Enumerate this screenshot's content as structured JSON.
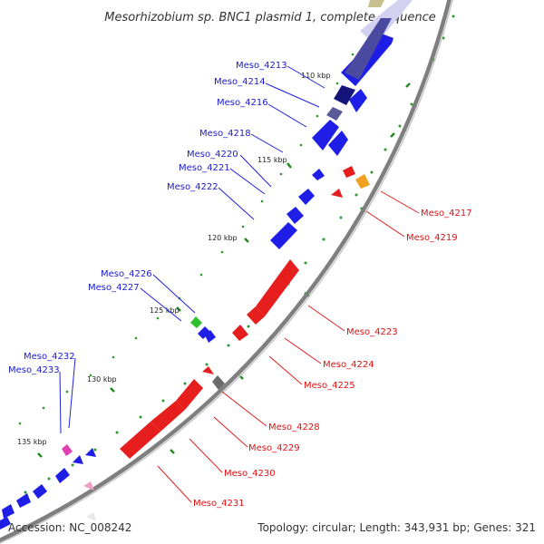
{
  "title": "Mesorhizobium sp. BNC1 plasmid 1, complete sequence",
  "footer": {
    "accession": "Accession: NC_008242",
    "summary": "Topology: circular; Length: 343,931 bp; Genes: 321"
  },
  "scale_labels": [
    "110 kbp",
    "115 kbp",
    "120 kbp",
    "125 kbp",
    "130 kbp",
    "135 kbp"
  ],
  "genes_forward": [
    "Meso_4213",
    "Meso_4214",
    "Meso_4216",
    "Meso_4218",
    "Meso_4220",
    "Meso_4221",
    "Meso_4222",
    "Meso_4226",
    "Meso_4227",
    "Meso_4232",
    "Meso_4233"
  ],
  "genes_reverse": [
    "Meso_4217",
    "Meso_4219",
    "Meso_4223",
    "Meso_4224",
    "Meso_4225",
    "Meso_4228",
    "Meso_4229",
    "Meso_4230",
    "Meso_4231"
  ],
  "colors": {
    "forward_cds": "#1e1ee6",
    "reverse_cds": "#e61e1e",
    "backbone": "#7f7f7f",
    "gc_ticks": "#1e9a1e",
    "forward_label": "#1a1ad0",
    "reverse_label": "#e01010"
  }
}
